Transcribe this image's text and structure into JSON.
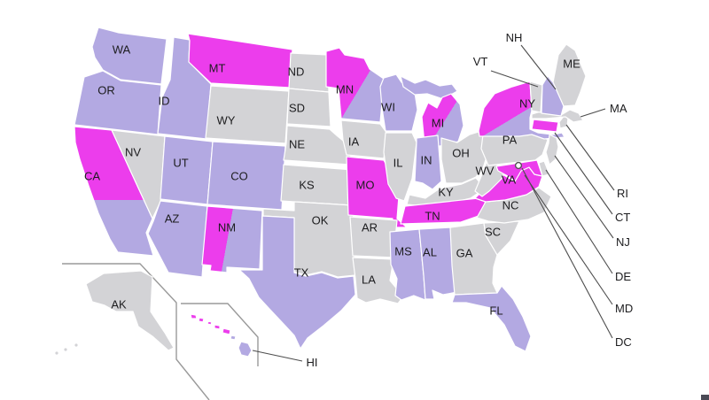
{
  "map": {
    "title": "US states map with purple, magenta and gray highlighted states",
    "colors": {
      "purple": "#b3a9e2",
      "magenta": "#ec3dec",
      "gray": "#d3d3d6"
    },
    "border_color": "#ffffff",
    "label_color": "#1c1c1e",
    "callout_line_color": "#4d4d4d",
    "inset_line_color": "#9a9a9a",
    "dc_marker": {
      "fill": "#ffffff",
      "stroke": "#555555"
    },
    "states": [
      {
        "id": "WA",
        "label": "WA",
        "color": "purple"
      },
      {
        "id": "OR",
        "label": "OR",
        "color": "purple"
      },
      {
        "id": "CA",
        "label": "CA",
        "color": "mixed"
      },
      {
        "id": "NV",
        "label": "NV",
        "color": "gray"
      },
      {
        "id": "ID",
        "label": "ID",
        "color": "purple"
      },
      {
        "id": "MT",
        "label": "MT",
        "color": "magenta"
      },
      {
        "id": "WY",
        "label": "WY",
        "color": "gray"
      },
      {
        "id": "UT",
        "label": "UT",
        "color": "purple"
      },
      {
        "id": "CO",
        "label": "CO",
        "color": "purple"
      },
      {
        "id": "AZ",
        "label": "AZ",
        "color": "purple"
      },
      {
        "id": "NM",
        "label": "NM",
        "color": "mixed"
      },
      {
        "id": "ND",
        "label": "ND",
        "color": "gray"
      },
      {
        "id": "SD",
        "label": "SD",
        "color": "gray"
      },
      {
        "id": "NE",
        "label": "NE",
        "color": "gray"
      },
      {
        "id": "KS",
        "label": "KS",
        "color": "gray"
      },
      {
        "id": "OK",
        "label": "OK",
        "color": "gray"
      },
      {
        "id": "TX",
        "label": "TX",
        "color": "purple"
      },
      {
        "id": "MN",
        "label": "MN",
        "color": "mixed"
      },
      {
        "id": "IA",
        "label": "IA",
        "color": "gray"
      },
      {
        "id": "MO",
        "label": "MO",
        "color": "magenta"
      },
      {
        "id": "AR",
        "label": "AR",
        "color": "gray"
      },
      {
        "id": "LA",
        "label": "LA",
        "color": "gray"
      },
      {
        "id": "WI",
        "label": "WI",
        "color": "purple"
      },
      {
        "id": "IL",
        "label": "IL",
        "color": "gray"
      },
      {
        "id": "MI",
        "label": "MI",
        "color": "mixed"
      },
      {
        "id": "IN",
        "label": "IN",
        "color": "purple"
      },
      {
        "id": "OH",
        "label": "OH",
        "color": "gray"
      },
      {
        "id": "KY",
        "label": "KY",
        "color": "gray"
      },
      {
        "id": "TN",
        "label": "TN",
        "color": "magenta"
      },
      {
        "id": "MS",
        "label": "MS",
        "color": "purple"
      },
      {
        "id": "AL",
        "label": "AL",
        "color": "purple"
      },
      {
        "id": "GA",
        "label": "GA",
        "color": "gray"
      },
      {
        "id": "FL",
        "label": "FL",
        "color": "purple"
      },
      {
        "id": "SC",
        "label": "SC",
        "color": "gray"
      },
      {
        "id": "NC",
        "label": "NC",
        "color": "gray"
      },
      {
        "id": "VA",
        "label": "VA",
        "color": "magenta"
      },
      {
        "id": "WV",
        "label": "WV",
        "color": "gray"
      },
      {
        "id": "KY2",
        "label": "",
        "color": "none"
      },
      {
        "id": "PA",
        "label": "PA",
        "color": "gray"
      },
      {
        "id": "NY",
        "label": "NY",
        "color": "mixed"
      },
      {
        "id": "NJ",
        "label": "NJ",
        "color": "gray"
      },
      {
        "id": "DE",
        "label": "DE",
        "color": "gray"
      },
      {
        "id": "MD",
        "label": "MD",
        "color": "magenta"
      },
      {
        "id": "CT",
        "label": "CT",
        "color": "magenta"
      },
      {
        "id": "RI",
        "label": "RI",
        "color": "gray"
      },
      {
        "id": "MA",
        "label": "MA",
        "color": "gray"
      },
      {
        "id": "VT",
        "label": "VT",
        "color": "gray"
      },
      {
        "id": "NH",
        "label": "NH",
        "color": "purple"
      },
      {
        "id": "ME",
        "label": "ME",
        "color": "gray"
      },
      {
        "id": "AK",
        "label": "AK",
        "color": "gray"
      },
      {
        "id": "HI",
        "label": "HI",
        "color": "mixed"
      },
      {
        "id": "DC",
        "label": "DC",
        "color": "marker"
      }
    ],
    "callout_labels": [
      "NH",
      "VT",
      "MA",
      "RI",
      "CT",
      "NJ",
      "DE",
      "MD",
      "DC",
      "HI"
    ]
  }
}
